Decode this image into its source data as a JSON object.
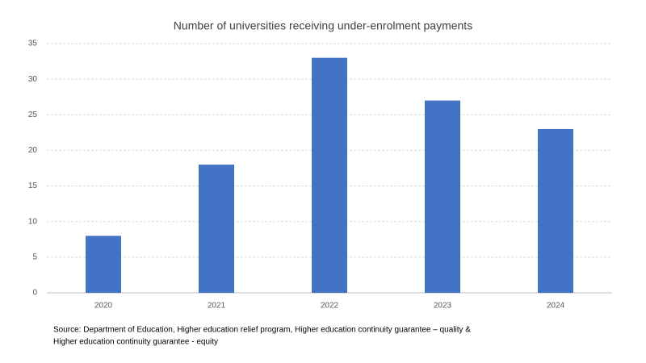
{
  "chart_data": {
    "type": "bar",
    "title": "Number of universities receiving under-enrolment payments",
    "categories": [
      "2020",
      "2021",
      "2022",
      "2023",
      "2024"
    ],
    "values": [
      8,
      18,
      33,
      27,
      23
    ],
    "color": "#4472c4",
    "ylim": [
      0,
      35
    ],
    "yticks": [
      0,
      5,
      10,
      15,
      20,
      25,
      30,
      35
    ],
    "grid": true,
    "source": [
      "Source: Department of Education, Higher education relief program, Higher education continuity guarantee – quality &",
      "Higher education continuity guarantee - equity"
    ]
  }
}
